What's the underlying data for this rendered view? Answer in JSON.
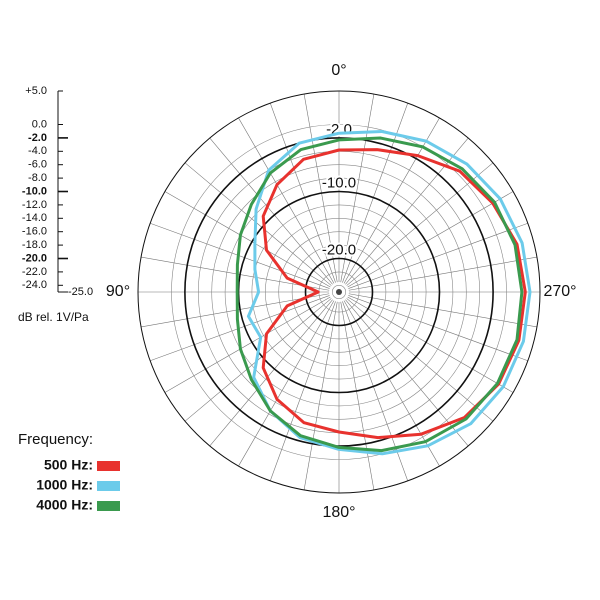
{
  "chart_data": {
    "type": "polar",
    "angles": [
      0,
      15,
      30,
      45,
      60,
      75,
      90,
      105,
      120,
      135,
      150,
      165,
      180,
      195,
      210,
      225,
      240,
      255,
      270,
      285,
      300,
      315,
      330,
      345
    ],
    "series": [
      {
        "name": "500 Hz:",
        "color": "#e8322e",
        "values": [
          -3.8,
          -4.5,
          -6.5,
          -9,
          -12.5,
          -17,
          -21.9,
          -17,
          -12.5,
          -9,
          -6.5,
          -4.8,
          -4.1,
          -2.5,
          -0.5,
          1.5,
          2.5,
          2.8,
          2.8,
          2.5,
          1.5,
          0.5,
          -1.5,
          -3
        ]
      },
      {
        "name": "1000 Hz:",
        "color": "#6ccbea",
        "values": [
          -1.3,
          -2,
          -4,
          -7.5,
          -10.5,
          -12,
          -13,
          -11,
          -11.5,
          -7,
          -4.5,
          -2.5,
          -1.5,
          0,
          1.5,
          2.8,
          3.3,
          3.5,
          3.5,
          3.3,
          2.8,
          2,
          1,
          -0.2
        ]
      },
      {
        "name": "4000 Hz:",
        "color": "#3a9a4e",
        "values": [
          -2.3,
          -3,
          -4.5,
          -6.5,
          -8,
          -9.3,
          -9.8,
          -9.3,
          -8,
          -6.5,
          -4.5,
          -2.8,
          -1.8,
          -0.5,
          0.8,
          1.8,
          2.3,
          2.5,
          2.3,
          2.2,
          1.8,
          1,
          0,
          -1.2
        ]
      }
    ],
    "rlim": [
      -25,
      5
    ],
    "rticks": [
      {
        "value": 5,
        "label": "+5.0"
      },
      {
        "value": 0,
        "label": "0.0"
      },
      {
        "value": -2,
        "label": "-2.0",
        "major": true
      },
      {
        "value": -4,
        "label": "-4.0"
      },
      {
        "value": -6,
        "label": "-6.0"
      },
      {
        "value": -8,
        "label": "-8.0"
      },
      {
        "value": -10,
        "label": "-10.0",
        "major": true
      },
      {
        "value": -12,
        "label": "-12.0"
      },
      {
        "value": -14,
        "label": "-14.0"
      },
      {
        "value": -16,
        "label": "-16.0"
      },
      {
        "value": -18,
        "label": "-18.0"
      },
      {
        "value": -20,
        "label": "-20.0",
        "major": true
      },
      {
        "value": -22,
        "label": "-22.0"
      },
      {
        "value": -24,
        "label": "-24.0"
      },
      {
        "value": -25,
        "label": "-25.0"
      }
    ],
    "angle_labels": [
      {
        "value": 0,
        "label": "0°"
      },
      {
        "value": 90,
        "label": "90°"
      },
      {
        "value": 180,
        "label": "180°"
      },
      {
        "value": 270,
        "label": "270°"
      }
    ],
    "spoke_step": 10,
    "scale_label": "dB rel. 1V/Pa",
    "legend_title": "Frequency:"
  }
}
